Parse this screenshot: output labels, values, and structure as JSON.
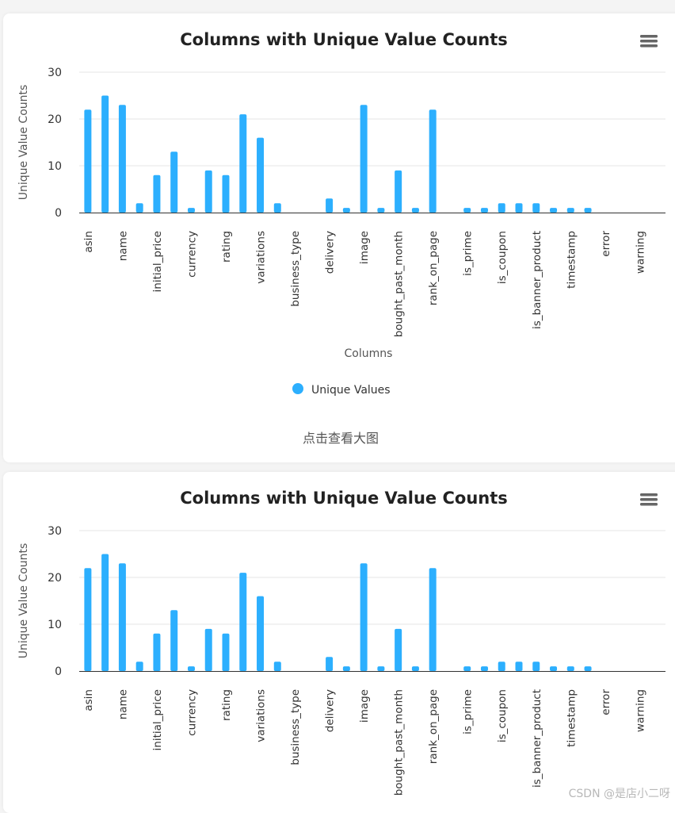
{
  "charts": [
    {
      "title": "Columns with Unique Value Counts",
      "menu_icon": "hamburger-menu-icon",
      "legend_label": "Unique Values",
      "caption": "点击查看大图"
    },
    {
      "title": "Columns with Unique Value Counts",
      "menu_icon": "hamburger-menu-icon"
    }
  ],
  "watermark": "CSDN @是店小二呀",
  "chart_data": {
    "type": "bar",
    "title": "Columns with Unique Value Counts",
    "xlabel": "Columns",
    "ylabel": "Unique Value Counts",
    "ylim": [
      0,
      30
    ],
    "yticks": [
      0,
      10,
      20,
      30
    ],
    "grid": true,
    "legend": "bottom-center",
    "color": "#2caffe",
    "series": [
      {
        "name": "Unique Values",
        "values": [
          22,
          25,
          23,
          2,
          8,
          13,
          1,
          9,
          8,
          21,
          16,
          2,
          0,
          0,
          3,
          1,
          23,
          1,
          9,
          1,
          22,
          0,
          1,
          1,
          2,
          2,
          2,
          1,
          1,
          1,
          0,
          0,
          0,
          0
        ]
      }
    ],
    "categories": [
      "asin",
      "",
      "name",
      "",
      "initial_price",
      "",
      "currency",
      "",
      "rating",
      "",
      "variations",
      "",
      "business_type",
      "",
      "delivery",
      "",
      "image",
      "",
      "bought_past_month",
      "",
      "rank_on_page",
      "",
      "is_prime",
      "",
      "is_coupon",
      "",
      "is_banner_product",
      "",
      "timestamp",
      "",
      "error",
      "",
      "warning",
      ""
    ]
  }
}
